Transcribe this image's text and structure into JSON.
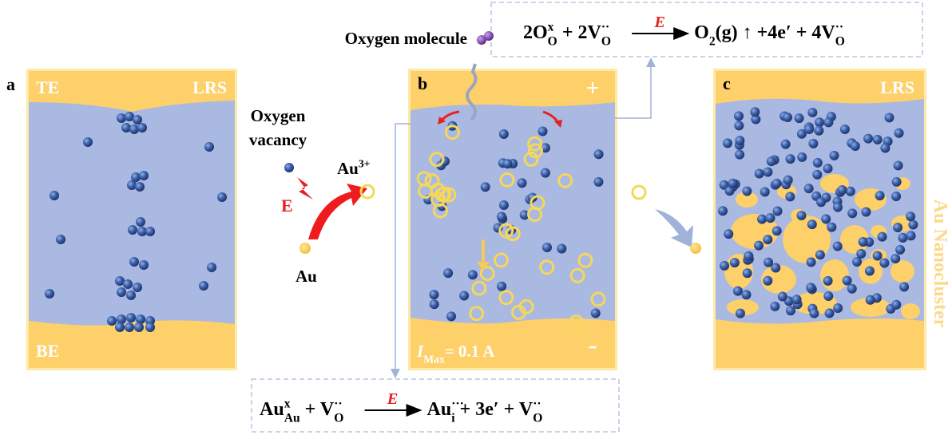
{
  "panel_a": {
    "label": "a",
    "top_electrode": "TE",
    "state": "LRS",
    "bottom_electrode": "BE"
  },
  "panel_b": {
    "label": "b",
    "top_sign": "+",
    "bottom_sign": "-",
    "current": [
      {
        "text": "I",
        "italic": true
      },
      {
        "sub": "Max"
      },
      {
        "text": "= 0.1 A"
      }
    ]
  },
  "panel_c": {
    "label": "c",
    "state": "LRS",
    "side_label": "Au Nanocluster"
  },
  "legend": {
    "oxygen_molecule": "Oxygen molecule",
    "oxygen_vacancy": [
      "Oxygen",
      "vacancy"
    ],
    "field": "E",
    "ion": [
      {
        "text": "Au"
      },
      {
        "sup": "3+"
      }
    ],
    "atom": "Au"
  },
  "equation_top": {
    "left": [
      {
        "text": "2O"
      },
      {
        "sup": "x",
        "sub": "O"
      },
      {
        "text": " + 2V"
      },
      {
        "sup": "··",
        "sub": "O"
      }
    ],
    "arrow_label": "E",
    "right": [
      {
        "text": "O"
      },
      {
        "sub": "2"
      },
      {
        "text": "(g) ↑ +4e′ + 4V"
      },
      {
        "sup": "··",
        "sub": "O"
      }
    ]
  },
  "equation_bottom": {
    "left": [
      {
        "text": "Au"
      },
      {
        "sup": "x",
        "sub": "Au"
      },
      {
        "text": " + V"
      },
      {
        "sup": "··",
        "sub": "O"
      }
    ],
    "arrow_label": "E",
    "right": [
      {
        "text": "Au"
      },
      {
        "sup": "···",
        "sub": "i"
      },
      {
        "text": " + 3e′ + V"
      },
      {
        "sup": "··",
        "sub": "O"
      }
    ]
  }
}
